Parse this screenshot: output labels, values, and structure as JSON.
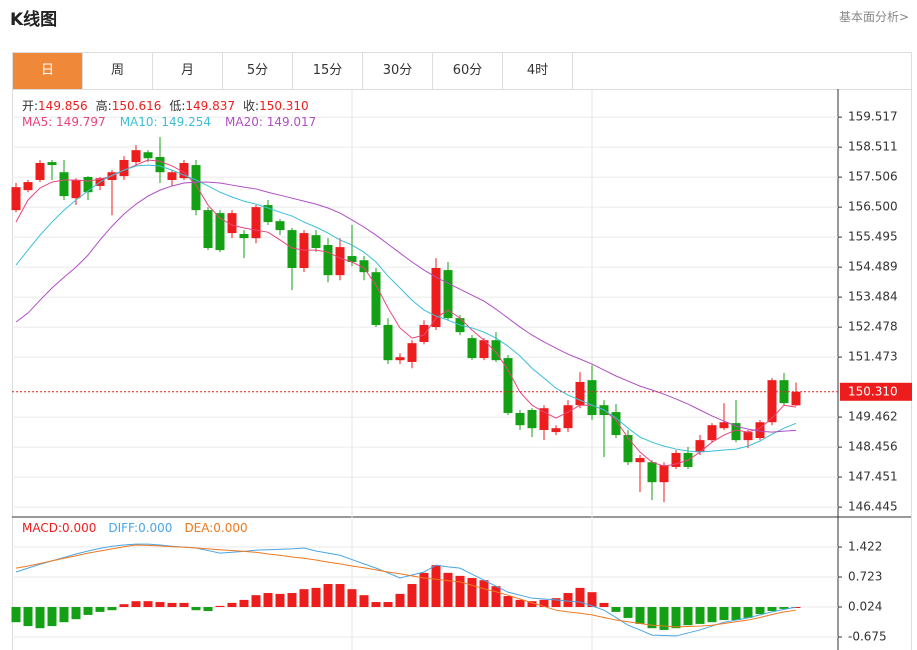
{
  "header": {
    "title": "K线图",
    "link": "基本面分析>"
  },
  "tabs": [
    "日",
    "周",
    "月",
    "5分",
    "15分",
    "30分",
    "60分",
    "4时"
  ],
  "chart_data": [
    {
      "type": "candlestick",
      "info": [
        {
          "label": "开:",
          "value": "149.856"
        },
        {
          "label": "高:",
          "value": "150.616"
        },
        {
          "label": "低:",
          "value": "149.837"
        },
        {
          "label": "收:",
          "value": "150.310"
        }
      ],
      "up_color": "#ee1d1d",
      "down_color": "#14a014",
      "grid": true,
      "ylim": [
        146.18,
        160.46
      ],
      "yticks": [
        159.517,
        158.511,
        157.506,
        {
          "value": 156.5,
          "label": "156.500"
        },
        155.495,
        154.489,
        153.484,
        152.478,
        151.473,
        149.462,
        148.456,
        147.451,
        146.445
      ],
      "last_price": {
        "value": 150.31,
        "label": "150.310"
      },
      "open": [
        156.4,
        157.07,
        157.41,
        158.01,
        157.67,
        156.8,
        157.51,
        157.21,
        157.41,
        157.54,
        158.01,
        158.34,
        158.18,
        157.41,
        157.47,
        157.91,
        156.4,
        156.3,
        155.63,
        155.6,
        155.46,
        156.57,
        156.03,
        155.73,
        154.46,
        155.56,
        155.23,
        154.22,
        154.86,
        154.72,
        154.32,
        152.55,
        151.37,
        151.31,
        151.98,
        152.48,
        154.39,
        152.78,
        152.11,
        151.44,
        152.04,
        151.44,
        149.6,
        149.7,
        149.03,
        148.96,
        149.09,
        149.86,
        150.7,
        149.86,
        149.63,
        148.86,
        147.95,
        147.95,
        147.28,
        147.79,
        148.26,
        148.29,
        148.69,
        149.09,
        149.26,
        148.69,
        148.76,
        149.29,
        150.7,
        149.856
      ],
      "high": [
        157.31,
        157.41,
        158.08,
        158.08,
        158.08,
        157.47,
        157.54,
        157.51,
        157.74,
        158.21,
        158.58,
        158.41,
        158.85,
        157.74,
        158.08,
        158.08,
        156.5,
        156.4,
        156.4,
        155.73,
        156.57,
        156.74,
        156.1,
        155.8,
        155.73,
        155.73,
        155.46,
        155.46,
        155.9,
        154.86,
        154.46,
        152.78,
        151.6,
        152.04,
        152.71,
        154.79,
        154.66,
        152.88,
        152.21,
        152.11,
        152.31,
        151.54,
        149.7,
        149.76,
        149.86,
        149.19,
        150.03,
        150.97,
        151.2,
        150.03,
        149.9,
        149.03,
        148.19,
        148.02,
        147.95,
        148.36,
        148.46,
        148.86,
        149.26,
        149.93,
        150.03,
        149.03,
        149.36,
        150.77,
        150.94,
        150.616
      ],
      "low": [
        156.33,
        157.0,
        157.34,
        157.41,
        156.74,
        156.57,
        156.74,
        157.07,
        156.23,
        157.41,
        157.91,
        158.01,
        157.31,
        157.21,
        157.41,
        156.23,
        155.06,
        154.99,
        155.46,
        154.79,
        155.29,
        155.9,
        155.56,
        153.72,
        154.32,
        155.0,
        153.98,
        154.05,
        154.52,
        154.05,
        152.48,
        151.24,
        151.24,
        151.1,
        151.9,
        152.38,
        152.71,
        152.21,
        151.37,
        151.37,
        151.31,
        149.53,
        149.03,
        148.79,
        148.69,
        148.86,
        148.96,
        149.76,
        149.36,
        148.12,
        148.76,
        147.85,
        146.95,
        146.68,
        146.61,
        147.72,
        147.72,
        148.19,
        148.62,
        149.03,
        148.62,
        148.42,
        148.69,
        149.19,
        149.86,
        149.837
      ],
      "close": [
        157.17,
        157.34,
        157.98,
        157.91,
        156.87,
        157.41,
        157.0,
        157.47,
        157.67,
        158.08,
        158.41,
        158.14,
        157.67,
        157.67,
        157.98,
        156.4,
        155.13,
        155.06,
        156.3,
        155.46,
        156.5,
        156.0,
        155.73,
        154.46,
        155.63,
        155.13,
        154.22,
        155.16,
        154.66,
        154.32,
        152.55,
        151.37,
        151.47,
        151.94,
        152.55,
        154.46,
        152.78,
        152.31,
        151.44,
        152.04,
        151.37,
        149.6,
        149.19,
        149.09,
        149.76,
        149.09,
        149.86,
        150.64,
        149.53,
        149.53,
        148.86,
        147.95,
        148.09,
        147.28,
        147.85,
        148.26,
        147.79,
        148.69,
        149.19,
        149.29,
        148.69,
        148.96,
        149.29,
        150.7,
        149.93,
        150.31
      ],
      "series": [
        {
          "legend": "MA5: 149.797",
          "color": "#e8457c",
          "values": [
            156.0,
            156.74,
            157.14,
            157.34,
            157.41,
            157.41,
            157.37,
            157.44,
            157.54,
            157.74,
            157.91,
            158.08,
            158.04,
            157.88,
            157.67,
            157.24,
            156.57,
            156.13,
            155.9,
            155.8,
            155.73,
            155.66,
            155.4,
            155.13,
            155.06,
            155.06,
            154.99,
            154.79,
            154.66,
            154.46,
            153.89,
            153.12,
            152.45,
            152.11,
            152.21,
            152.78,
            153.05,
            152.78,
            152.38,
            152.04,
            151.64,
            151.04,
            150.3,
            149.86,
            149.63,
            149.43,
            149.63,
            149.86,
            149.86,
            149.7,
            149.36,
            148.76,
            148.29,
            147.95,
            147.82,
            147.89,
            148.02,
            148.29,
            148.62,
            148.86,
            149.03,
            148.96,
            149.09,
            149.43,
            149.86,
            149.797
          ]
        },
        {
          "legend": "MA10: 149.254",
          "color": "#3bbfd6",
          "values": [
            154.56,
            155.06,
            155.56,
            156.0,
            156.4,
            156.74,
            157.04,
            157.34,
            157.57,
            157.74,
            157.88,
            157.91,
            157.88,
            157.74,
            157.57,
            157.41,
            157.21,
            157.0,
            156.84,
            156.7,
            156.6,
            156.47,
            156.33,
            156.2,
            156.0,
            155.83,
            155.63,
            155.4,
            155.23,
            154.99,
            154.66,
            154.19,
            153.79,
            153.38,
            153.05,
            152.85,
            152.71,
            152.55,
            152.45,
            152.31,
            152.11,
            151.84,
            151.51,
            151.1,
            150.77,
            150.43,
            150.2,
            150.03,
            149.86,
            149.7,
            149.43,
            149.09,
            148.79,
            148.62,
            148.49,
            148.39,
            148.32,
            148.29,
            148.32,
            148.36,
            148.39,
            148.49,
            148.66,
            148.89,
            149.09,
            149.254
          ]
        },
        {
          "legend": "MA20: 149.017",
          "color": "#b04ec4",
          "values": [
            152.65,
            152.95,
            153.38,
            153.79,
            154.15,
            154.49,
            154.89,
            155.4,
            155.86,
            156.27,
            156.6,
            156.87,
            157.07,
            157.21,
            157.31,
            157.34,
            157.34,
            157.31,
            157.24,
            157.17,
            157.11,
            157.0,
            156.9,
            156.8,
            156.7,
            156.6,
            156.47,
            156.3,
            156.07,
            155.83,
            155.56,
            155.26,
            154.96,
            154.66,
            154.39,
            154.15,
            153.95,
            153.75,
            153.55,
            153.35,
            153.08,
            152.78,
            152.48,
            152.21,
            151.98,
            151.77,
            151.57,
            151.41,
            151.24,
            151.04,
            150.84,
            150.67,
            150.5,
            150.37,
            150.23,
            150.07,
            149.9,
            149.7,
            149.5,
            149.33,
            149.16,
            149.06,
            148.99,
            148.96,
            148.99,
            149.017
          ]
        }
      ]
    },
    {
      "type": "macd",
      "legend": "MACD:0.000",
      "up_color": "#ee1d1d",
      "down_color": "#14a014",
      "ylim": [
        -0.978,
        2.099
      ],
      "yticks": [
        1.422,
        0.723,
        0.024,
        -0.675
      ],
      "values": [
        -0.33,
        -0.42,
        -0.47,
        -0.42,
        -0.33,
        -0.26,
        -0.16,
        -0.09,
        -0.05,
        0.09,
        0.16,
        0.16,
        0.14,
        0.12,
        0.12,
        -0.05,
        -0.07,
        0.05,
        0.12,
        0.19,
        0.3,
        0.35,
        0.33,
        0.35,
        0.44,
        0.47,
        0.56,
        0.56,
        0.44,
        0.3,
        0.14,
        0.14,
        0.33,
        0.56,
        0.82,
        1.0,
        0.82,
        0.75,
        0.7,
        0.65,
        0.51,
        0.28,
        0.19,
        0.16,
        0.19,
        0.23,
        0.35,
        0.47,
        0.37,
        0.12,
        -0.09,
        -0.23,
        -0.37,
        -0.47,
        -0.51,
        -0.47,
        -0.4,
        -0.37,
        -0.33,
        -0.28,
        -0.28,
        -0.23,
        -0.14,
        -0.07,
        -0.02,
        0.02
      ],
      "series": [
        {
          "legend": "DIFF:0.000",
          "color": "#4aa6e6",
          "values": [
            0.84,
            0.93,
            1.02,
            1.1,
            1.18,
            1.26,
            1.33,
            1.39,
            1.44,
            1.47,
            1.49,
            1.49,
            1.47,
            1.44,
            1.42,
            1.4,
            1.34,
            1.28,
            1.3,
            1.32,
            1.35,
            1.36,
            1.37,
            1.38,
            1.4,
            1.33,
            1.28,
            1.23,
            1.13,
            1.03,
            0.93,
            0.82,
            0.7,
            0.77,
            0.84,
            1.0,
            0.96,
            0.93,
            0.79,
            0.65,
            0.51,
            0.37,
            0.3,
            0.23,
            0.21,
            0.19,
            0.16,
            0.14,
            0.05,
            -0.05,
            -0.22,
            -0.4,
            -0.51,
            -0.63,
            -0.64,
            -0.65,
            -0.58,
            -0.51,
            -0.42,
            -0.33,
            -0.28,
            -0.23,
            -0.16,
            -0.09,
            -0.03,
            0.02
          ]
        },
        {
          "legend": "DEA:0.000",
          "color": "#f07820",
          "values": [
            0.93,
            0.98,
            1.04,
            1.1,
            1.16,
            1.22,
            1.28,
            1.33,
            1.38,
            1.43,
            1.47,
            1.46,
            1.45,
            1.43,
            1.42,
            1.4,
            1.38,
            1.36,
            1.34,
            1.32,
            1.3,
            1.26,
            1.23,
            1.19,
            1.16,
            1.12,
            1.07,
            1.03,
            0.98,
            0.94,
            0.89,
            0.84,
            0.8,
            0.75,
            0.7,
            0.67,
            0.64,
            0.61,
            0.53,
            0.45,
            0.38,
            0.3,
            0.21,
            0.12,
            0.04,
            -0.05,
            -0.09,
            -0.12,
            -0.16,
            -0.22,
            -0.28,
            -0.32,
            -0.36,
            -0.4,
            -0.42,
            -0.44,
            -0.43,
            -0.42,
            -0.4,
            -0.36,
            -0.32,
            -0.28,
            -0.22,
            -0.15,
            -0.09,
            -0.05
          ]
        }
      ]
    }
  ]
}
